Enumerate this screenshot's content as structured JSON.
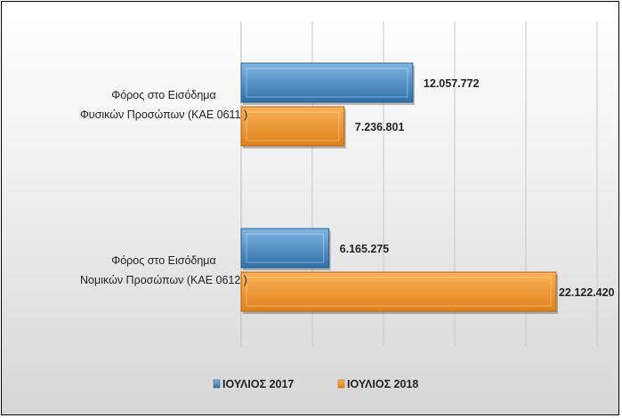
{
  "chart_data": {
    "type": "bar",
    "orientation": "horizontal",
    "categories": [
      [
        "Φόρος στο Εισόδημα",
        "Φυσικών Προσώπων (ΚΑΕ 0611 )"
      ],
      [
        "Φόρος στο Εισόδημα",
        "Νομικών Προσώπων (ΚΑΕ 0612 )"
      ]
    ],
    "series": [
      {
        "name": "ΙΟΥΛΙΟΣ 2017",
        "color": "#4a8ec6",
        "values": [
          12057772,
          6165275
        ],
        "labels": [
          "12.057.772",
          "6.165.275"
        ]
      },
      {
        "name": "ΙΟΥΛΙΟΣ 2018",
        "color": "#f0962e",
        "values": [
          7236801,
          22122420
        ],
        "labels": [
          "7.236.801",
          "22.122.420"
        ]
      }
    ],
    "xlim": [
      0,
      26000000
    ],
    "grid": true,
    "legend_position": "bottom"
  }
}
